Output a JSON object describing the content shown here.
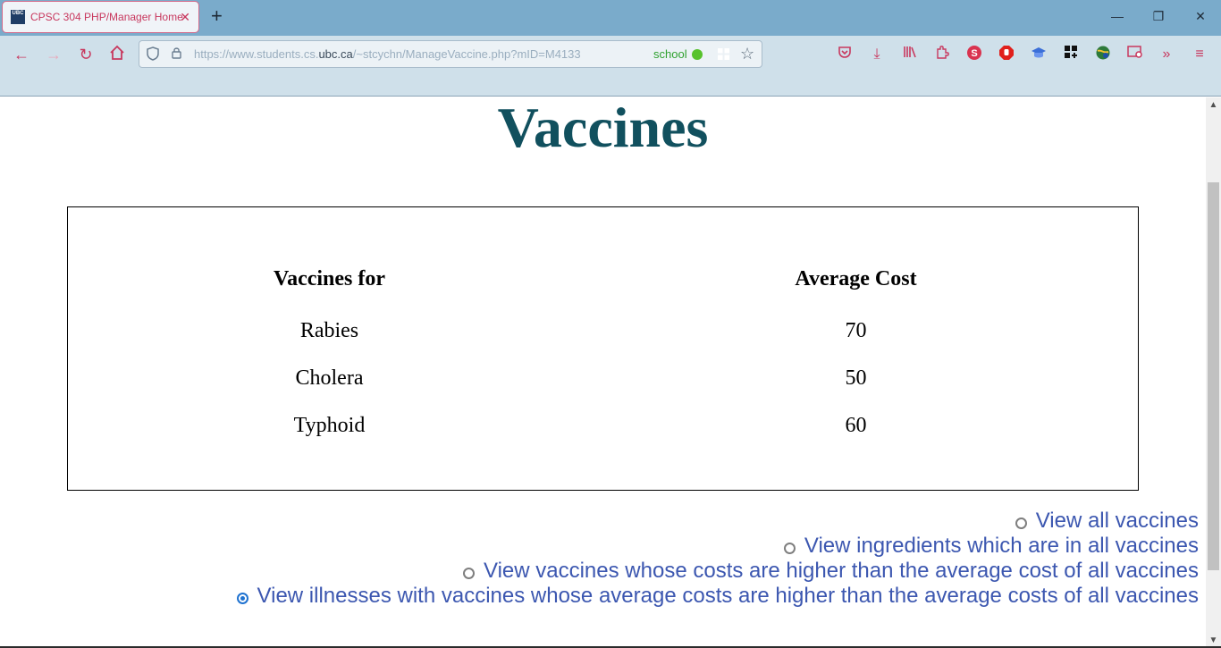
{
  "tab": {
    "title": "CPSC 304 PHP/Manager Home",
    "favicon_text": "UBC"
  },
  "address_bar": {
    "url_prefix": "https://www.students.cs.",
    "url_domain": "ubc.ca",
    "url_suffix": "/~stcychn/ManageVaccine.php?mID=M4133",
    "container_label": "school"
  },
  "page": {
    "heading": "Vaccines",
    "table": {
      "headers": [
        "Vaccines for",
        "Average Cost"
      ],
      "rows": [
        [
          "Rabies",
          "70"
        ],
        [
          "Cholera",
          "50"
        ],
        [
          "Typhoid",
          "60"
        ]
      ]
    },
    "options": [
      {
        "label": "View all vaccines",
        "checked": false
      },
      {
        "label": "View ingredients which are in all vaccines",
        "checked": false
      },
      {
        "label": "View vaccines whose costs are higher than the average cost of all vaccines",
        "checked": false
      },
      {
        "label": "View illnesses with vaccines whose average costs are higher than the average costs of all vaccines",
        "checked": true
      }
    ]
  },
  "colors": {
    "heading": "#11505e",
    "link": "#3c57b0",
    "accent": "#c8385e"
  }
}
